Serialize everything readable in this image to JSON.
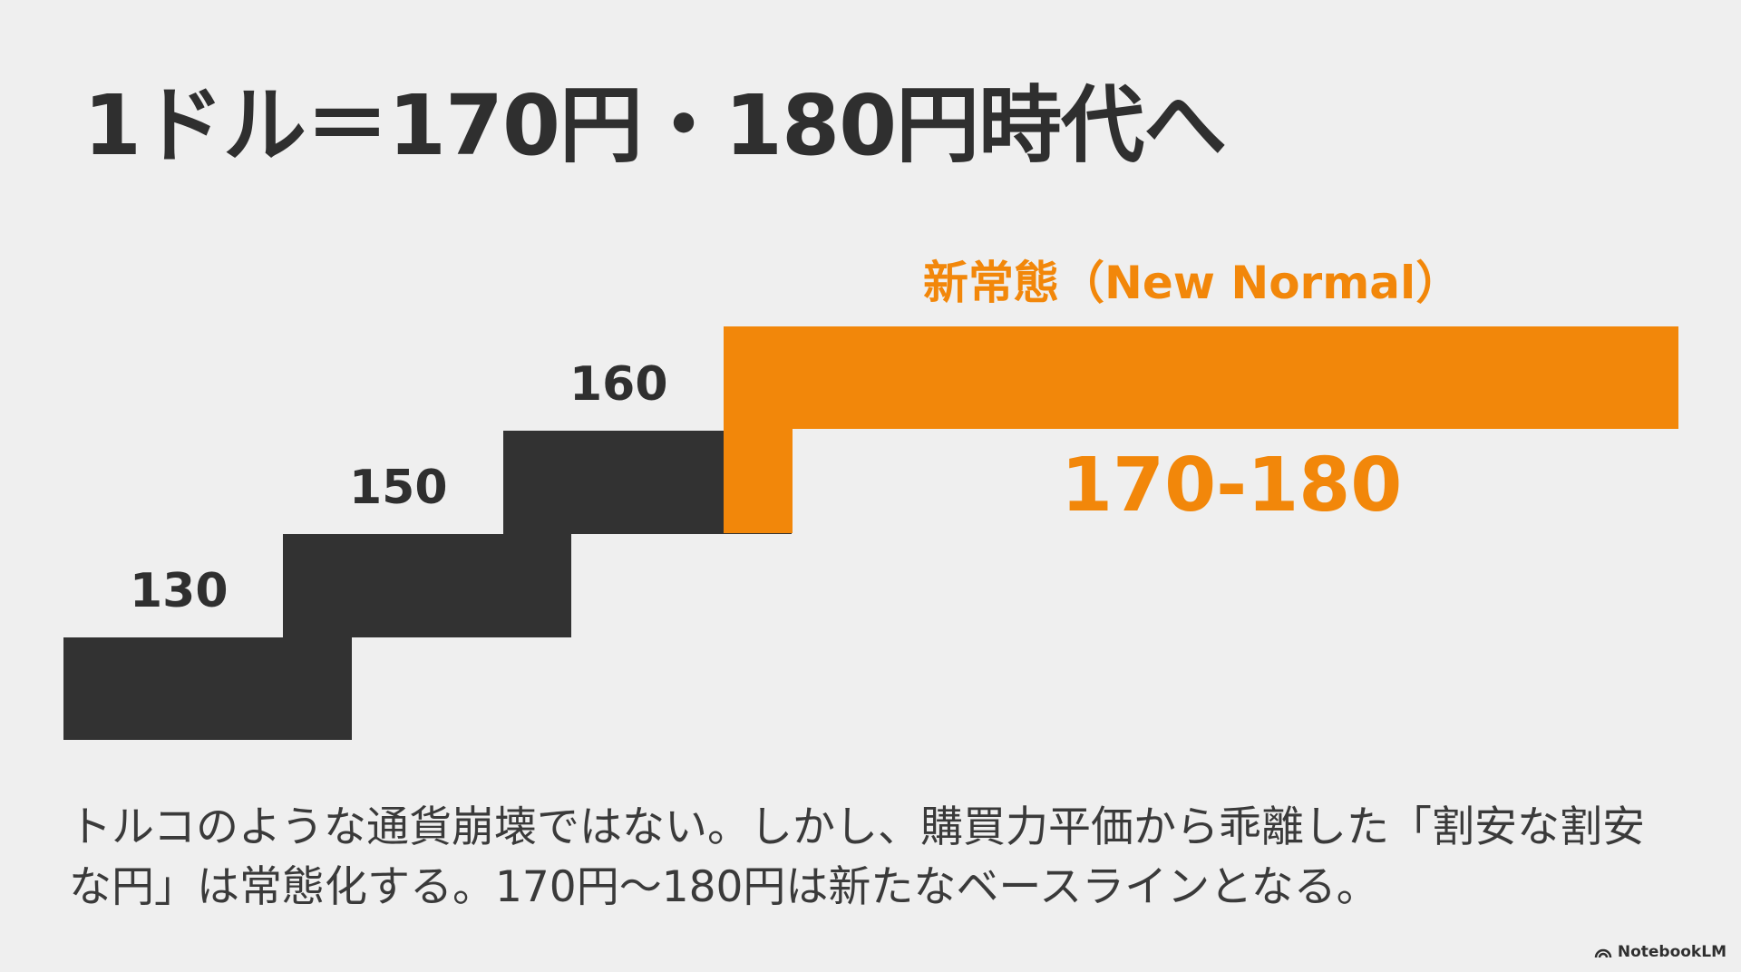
{
  "slide": {
    "title": "1ドル＝170円・180円時代へ",
    "steps": [
      {
        "label": "130",
        "value": 130
      },
      {
        "label": "150",
        "value": 150
      },
      {
        "label": "160",
        "value": 160
      }
    ],
    "new_normal": {
      "label": "新常態（New Normal）",
      "range_label": "170-180",
      "range": [
        170,
        180
      ]
    },
    "body": "トルコのような通貨崩壊ではない。しかし、購買力平価から乖離した「割安な割安な円」は常態化する。170円～180円は新たなベースラインとなる。",
    "brand": "NotebookLM",
    "colors": {
      "dark": "#323232",
      "accent": "#f2870a",
      "background": "#efefef"
    }
  }
}
